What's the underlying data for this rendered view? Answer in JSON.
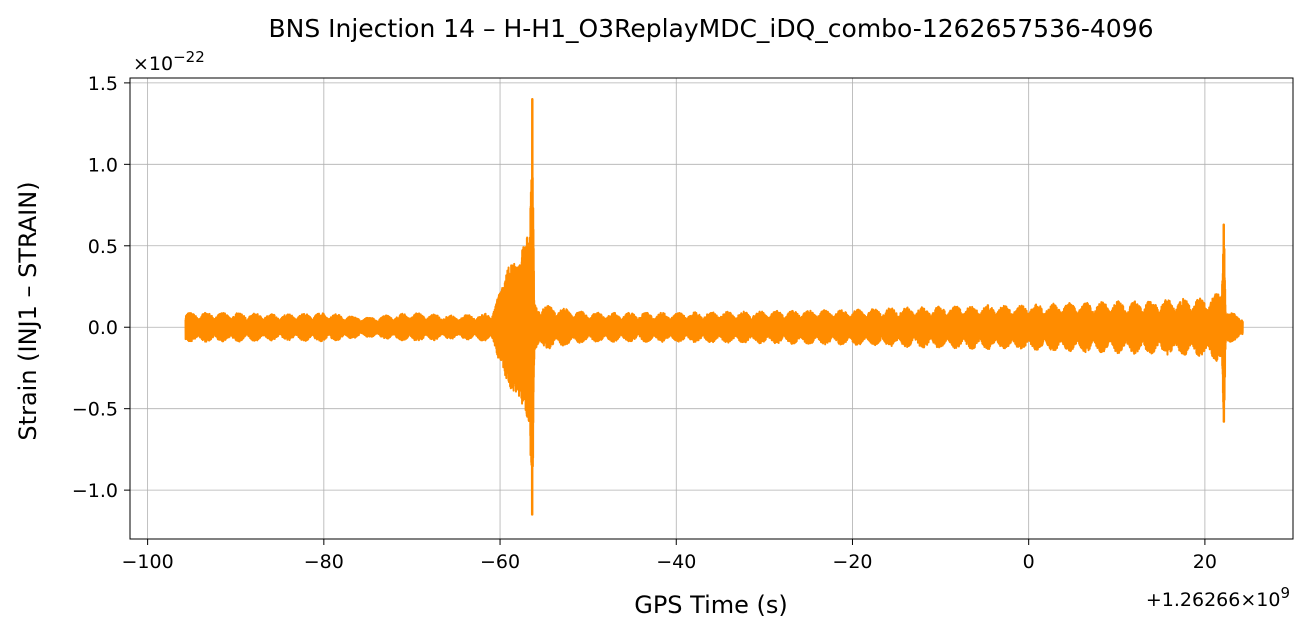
{
  "chart_data": {
    "type": "line",
    "title": "BNS Injection 14 – H-H1_O3ReplayMDC_iDQ_combo-1262657536-4096",
    "xlabel": "GPS Time (s)",
    "ylabel": "Strain (INJ1 – STRAIN)",
    "x_offset_label": "+1.26266×10",
    "x_offset_exp": "9",
    "y_scale_label": "×10",
    "y_scale_exp": "−22",
    "xlim": [
      -102,
      30
    ],
    "ylim": [
      -1.3,
      1.53
    ],
    "x_ticks": [
      -100,
      -80,
      -60,
      -40,
      -20,
      0,
      20
    ],
    "x_tick_labels": [
      "−100",
      "−80",
      "−60",
      "−40",
      "−20",
      "0",
      "20"
    ],
    "y_ticks": [
      -1.0,
      -0.5,
      0.0,
      0.5,
      1.0,
      1.5
    ],
    "y_tick_labels": [
      "−1.0",
      "−0.5",
      "0.0",
      "0.5",
      "1.0",
      "1.5"
    ],
    "grid": true,
    "line_color": "#ff8c00",
    "series_envelope": [
      {
        "x": -95.7,
        "amp": 0.09
      },
      {
        "x": -90,
        "amp": 0.09
      },
      {
        "x": -85,
        "amp": 0.08
      },
      {
        "x": -80,
        "amp": 0.09
      },
      {
        "x": -75,
        "amp": 0.06
      },
      {
        "x": -70,
        "amp": 0.09
      },
      {
        "x": -65,
        "amp": 0.07
      },
      {
        "x": -61,
        "amp": 0.09
      },
      {
        "x": -60,
        "amp": 0.22
      },
      {
        "x": -59,
        "amp": 0.38
      },
      {
        "x": -58,
        "amp": 0.4
      },
      {
        "x": -57,
        "amp": 0.55
      },
      {
        "x": -56.6,
        "amp": 0.6
      },
      {
        "x": -56.35,
        "amp": 1.4
      },
      {
        "x": -56.1,
        "amp": 0.15
      },
      {
        "x": -50,
        "amp": 0.09
      },
      {
        "x": -40,
        "amp": 0.09
      },
      {
        "x": -30,
        "amp": 0.1
      },
      {
        "x": -20,
        "amp": 0.11
      },
      {
        "x": -10,
        "amp": 0.13
      },
      {
        "x": 0,
        "amp": 0.14
      },
      {
        "x": 10,
        "amp": 0.16
      },
      {
        "x": 20,
        "amp": 0.18
      },
      {
        "x": 21.9,
        "amp": 0.22
      },
      {
        "x": 22.15,
        "amp": 0.63
      },
      {
        "x": 22.4,
        "amp": 0.1
      },
      {
        "x": 24.3,
        "amp": 0.07
      }
    ]
  }
}
